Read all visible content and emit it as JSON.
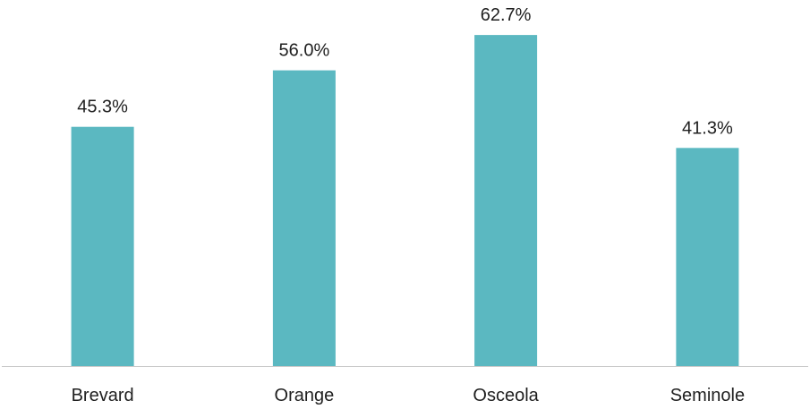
{
  "chart_data": {
    "type": "bar",
    "categories": [
      "Brevard",
      "Orange",
      "Osceola",
      "Seminole"
    ],
    "values": [
      45.3,
      56.0,
      62.7,
      41.3
    ],
    "data_labels": [
      "45.3%",
      "56.0%",
      "62.7%",
      "41.3%"
    ],
    "title": "",
    "xlabel": "",
    "ylabel": "",
    "ylim": [
      0,
      70
    ],
    "grid": false,
    "legend": "none",
    "colors": {
      "bar": "#5bb8c1",
      "axis": "#c9c9c9",
      "text": "#1f1f1f"
    }
  }
}
